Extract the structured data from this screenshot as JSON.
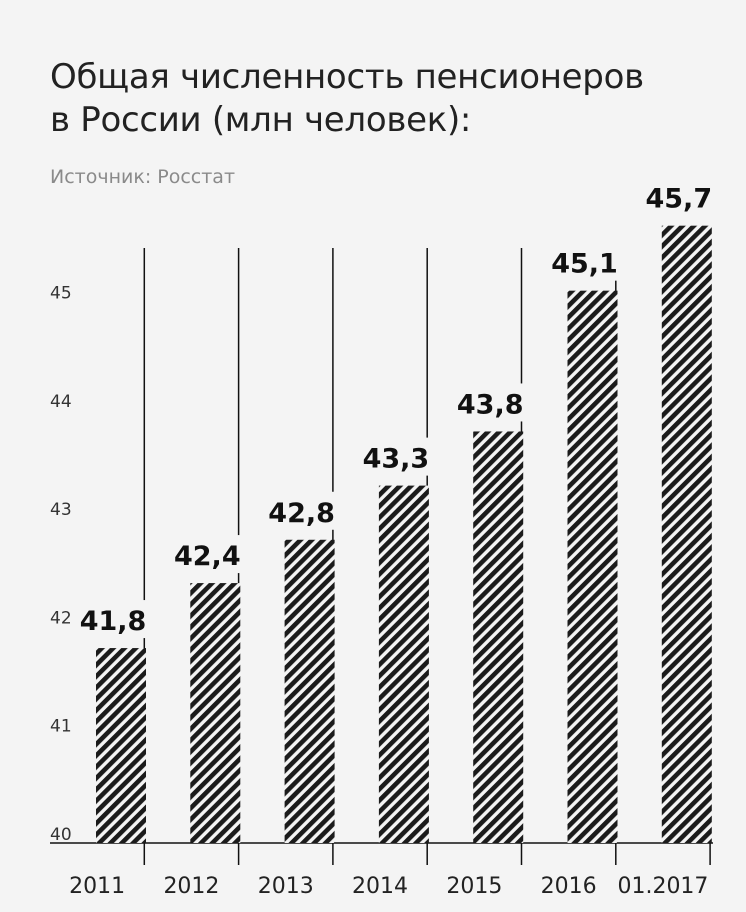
{
  "title_lines": [
    "Общая численность пенсионеров",
    "в России (млн человек):"
  ],
  "source": "Источник: Росстат",
  "colors": {
    "bar": "#1b1b1b",
    "background": "#f4f4f4"
  },
  "chart_data": {
    "type": "bar",
    "title": "Общая численность пенсионеров в России (млн человек):",
    "categories": [
      "2011",
      "2012",
      "2013",
      "2014",
      "2015",
      "2016",
      "01.2017"
    ],
    "values": [
      41.8,
      42.4,
      42.8,
      43.3,
      43.8,
      45.1,
      45.7
    ],
    "value_labels": [
      "41,8",
      "42,4",
      "42,8",
      "43,3",
      "43,8",
      "45,1",
      "45,7"
    ],
    "yticks": [
      "40",
      "41",
      "42",
      "43",
      "44",
      "45"
    ],
    "ylim": [
      40,
      46
    ],
    "xlabel": "",
    "ylabel": "",
    "grid": "vertical separators",
    "bar_fill": "diagonal hatch"
  }
}
